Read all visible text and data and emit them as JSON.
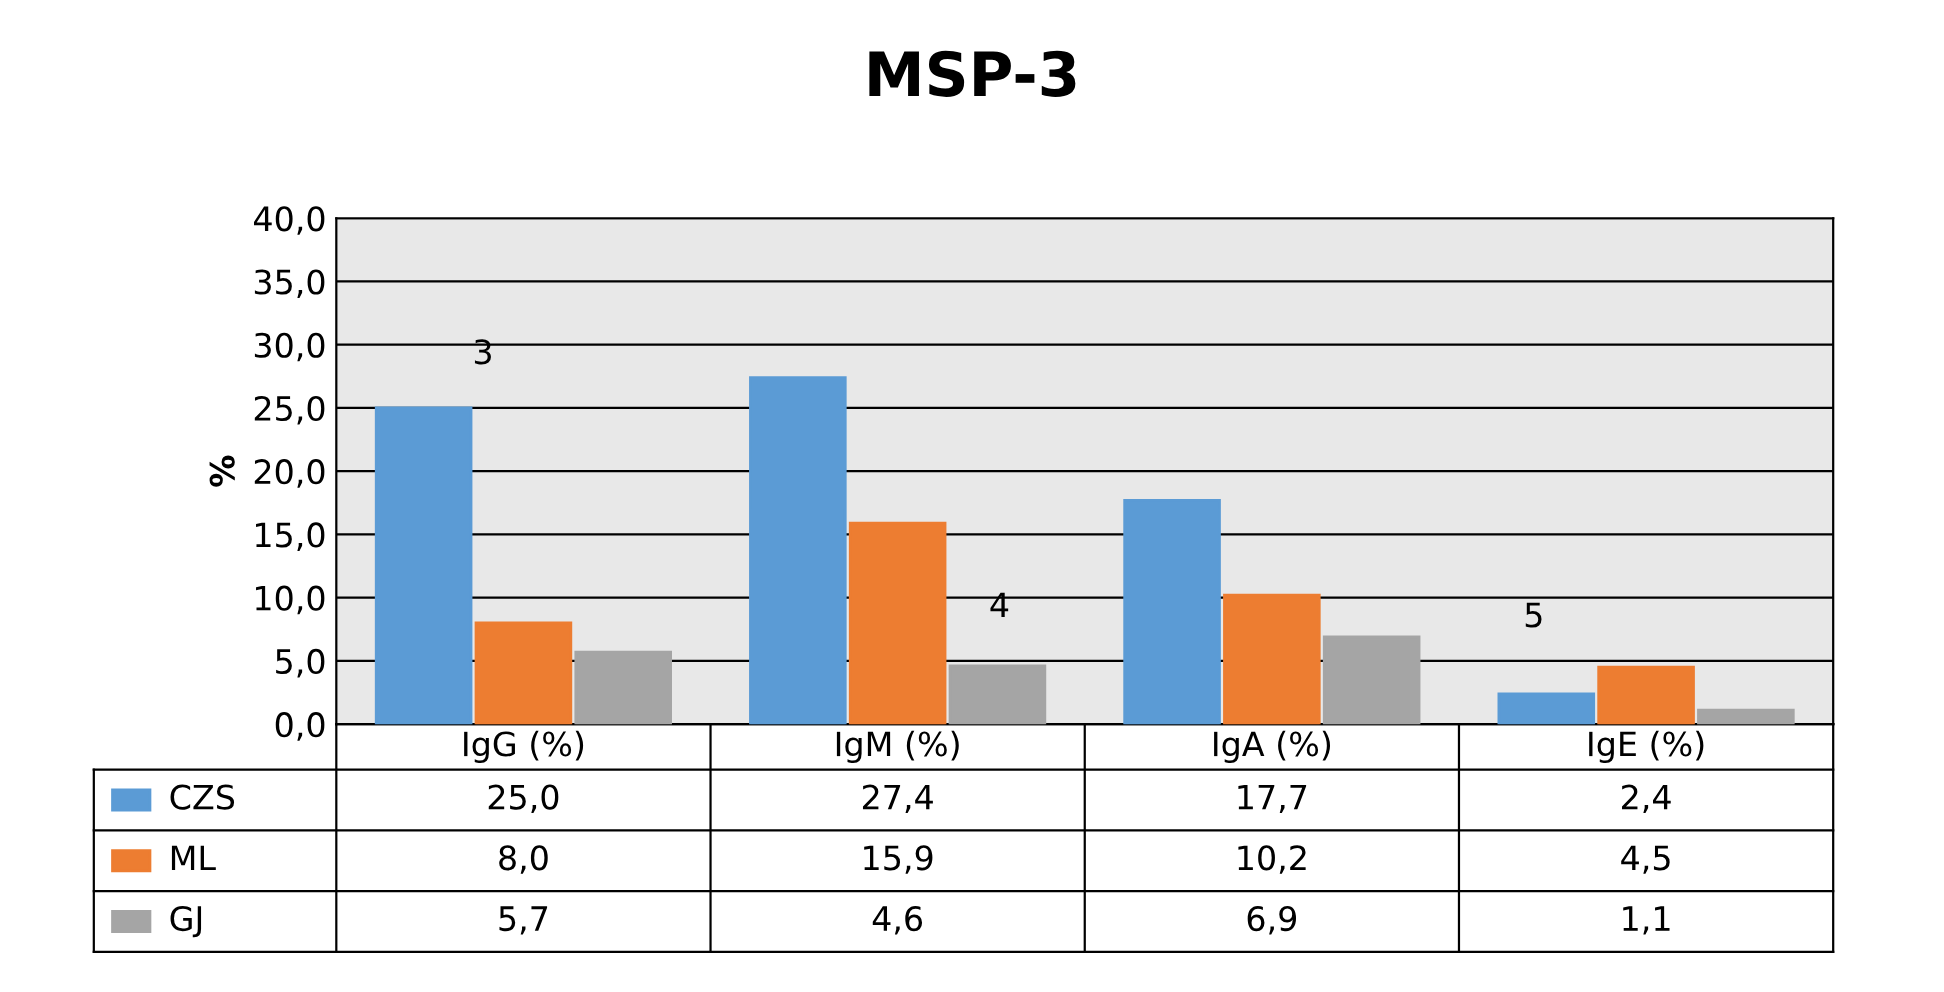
{
  "chart_data": {
    "type": "bar",
    "title": "MSP-3",
    "ylabel": "%",
    "categories": [
      "IgG (%)",
      "IgM (%)",
      "IgA (%)",
      "IgE (%)"
    ],
    "series": [
      {
        "name": "CZS",
        "color": "#5b9bd5",
        "values": [
          25.0,
          27.4,
          17.7,
          2.4
        ],
        "value_labels": [
          "25,0",
          "27,4",
          "17,7",
          "2,4"
        ]
      },
      {
        "name": "ML",
        "color": "#ed7d31",
        "values": [
          8.0,
          15.9,
          10.2,
          4.5
        ],
        "value_labels": [
          "8,0",
          "15,9",
          "10,2",
          "4,5"
        ]
      },
      {
        "name": "GJ",
        "color": "#a5a5a5",
        "values": [
          5.7,
          4.6,
          6.9,
          1.1
        ],
        "value_labels": [
          "5,7",
          "4,6",
          "6,9",
          "1,1"
        ]
      }
    ],
    "ylim": [
      0,
      40
    ],
    "yticks": [
      {
        "value": 0,
        "label": "0,0"
      },
      {
        "value": 5,
        "label": "5,0"
      },
      {
        "value": 10,
        "label": "10,0"
      },
      {
        "value": 15,
        "label": "15,0"
      },
      {
        "value": 20,
        "label": "20,0"
      },
      {
        "value": 25,
        "label": "25,0"
      },
      {
        "value": 30,
        "label": "30,0"
      },
      {
        "value": 35,
        "label": "35,0"
      },
      {
        "value": 40,
        "label": "40,0"
      }
    ],
    "grid": "y",
    "legend": "bottom",
    "annotations": [
      "3",
      "4",
      "5"
    ]
  }
}
